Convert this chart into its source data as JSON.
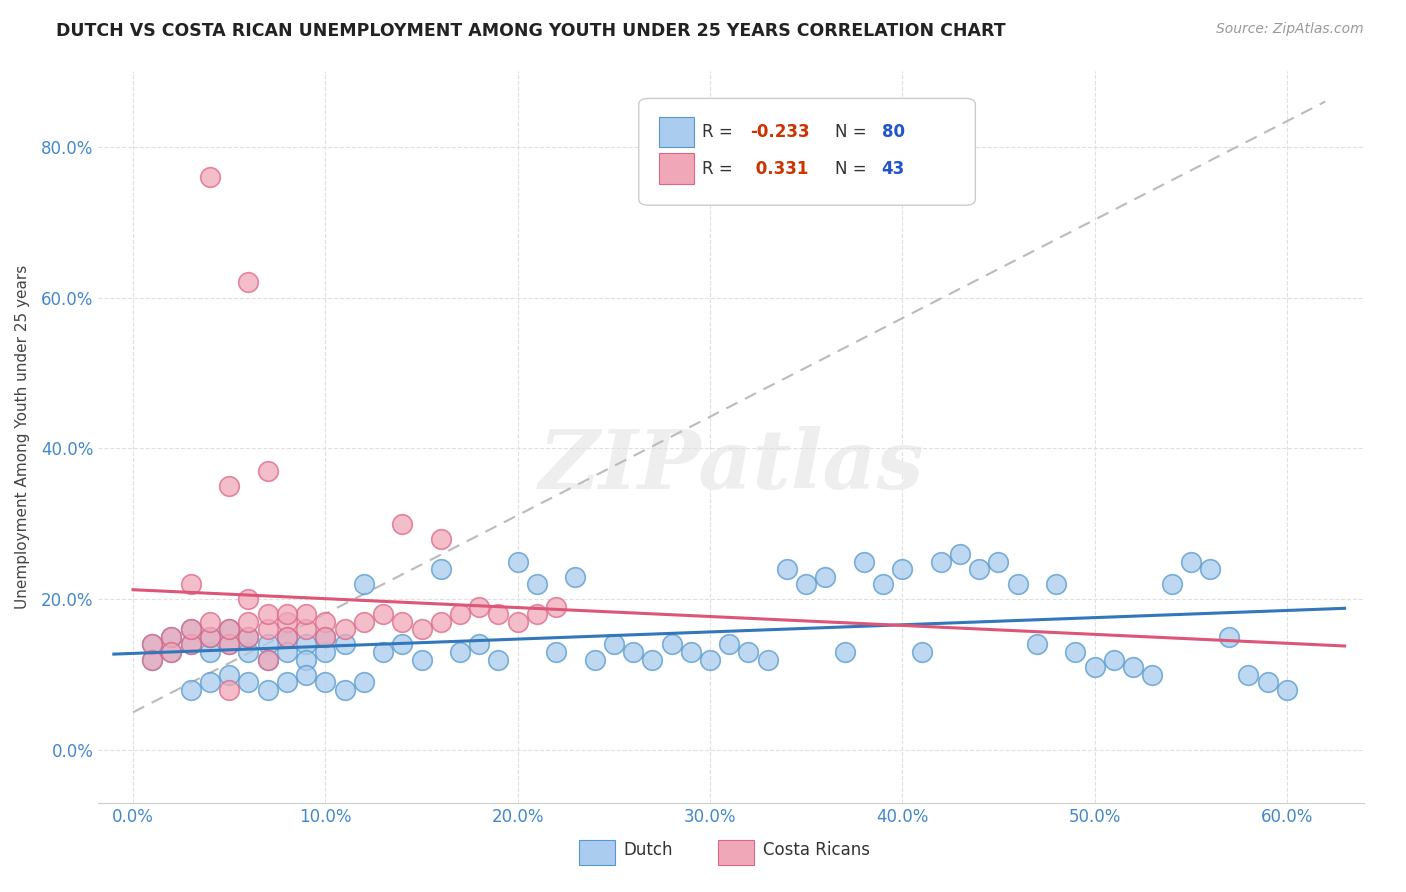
{
  "title": "DUTCH VS COSTA RICAN UNEMPLOYMENT AMONG YOUTH UNDER 25 YEARS CORRELATION CHART",
  "source": "Source: ZipAtlas.com",
  "ylabel": "Unemployment Among Youth under 25 years",
  "x_tick_labels": [
    "0.0%",
    "10.0%",
    "20.0%",
    "30.0%",
    "40.0%",
    "50.0%",
    "60.0%"
  ],
  "x_tick_values": [
    0.0,
    0.1,
    0.2,
    0.3,
    0.4,
    0.5,
    0.6
  ],
  "y_tick_labels": [
    "0.0%",
    "20.0%",
    "40.0%",
    "60.0%",
    "80.0%"
  ],
  "y_tick_values": [
    0.0,
    0.2,
    0.4,
    0.6,
    0.8
  ],
  "xlim": [
    -0.018,
    0.64
  ],
  "ylim": [
    -0.07,
    0.9
  ],
  "dutch_color": "#aaccee",
  "costa_rican_color": "#f0a8b8",
  "dutch_edge_color": "#5599cc",
  "costa_rican_edge_color": "#dd6688",
  "dutch_line_color": "#3377bb",
  "costa_rican_line_color": "#dd5577",
  "diag_line_color": "#bbbbbb",
  "legend_r_color": "#cc3300",
  "legend_n_color": "#2255cc",
  "watermark_color": "#e8e8e8",
  "background_color": "#ffffff",
  "grid_color": "#e0e0e0",
  "title_color": "#222222",
  "source_color": "#999999",
  "axis_color": "#4488cc",
  "label_color": "#444444"
}
